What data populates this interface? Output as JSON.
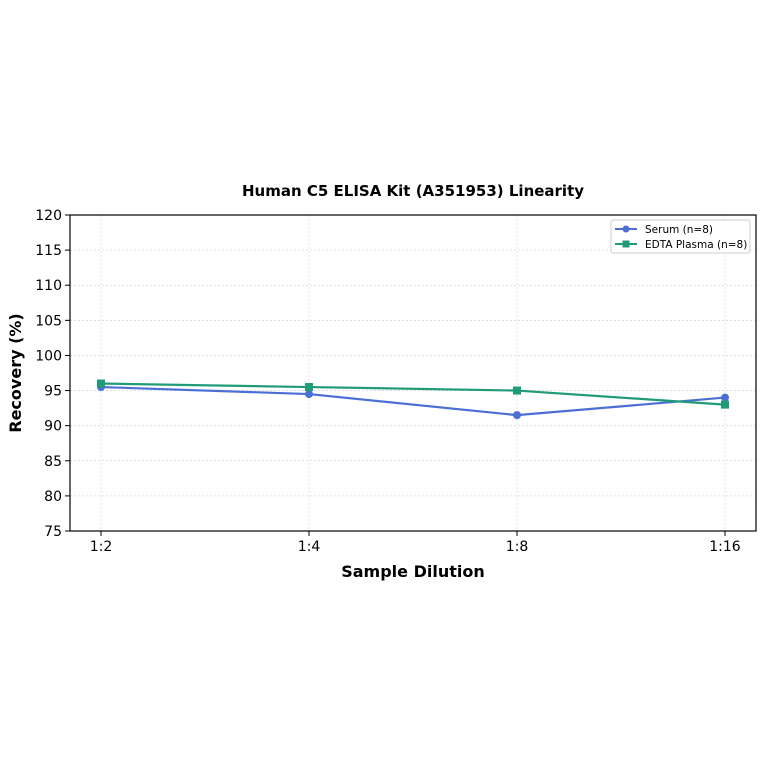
{
  "chart_data": {
    "type": "line",
    "title": "Human C5 ELISA Kit (A351953) Linearity",
    "xlabel": "Sample Dilution",
    "ylabel": "Recovery (%)",
    "categories": [
      "1:2",
      "1:4",
      "1:8",
      "1:16"
    ],
    "ylim": [
      75,
      120
    ],
    "yticks": [
      75,
      80,
      85,
      90,
      95,
      100,
      105,
      110,
      115,
      120
    ],
    "grid": true,
    "legend_position": "top-right",
    "series": [
      {
        "name": "Serum (n=8)",
        "values": [
          95.5,
          94.5,
          91.5,
          94.0
        ],
        "color": "#4c6fd6",
        "marker": "circle"
      },
      {
        "name": "EDTA Plasma (n=8)",
        "values": [
          96.0,
          95.5,
          95.0,
          93.0
        ],
        "color": "#1f9b78",
        "marker": "square"
      }
    ]
  }
}
